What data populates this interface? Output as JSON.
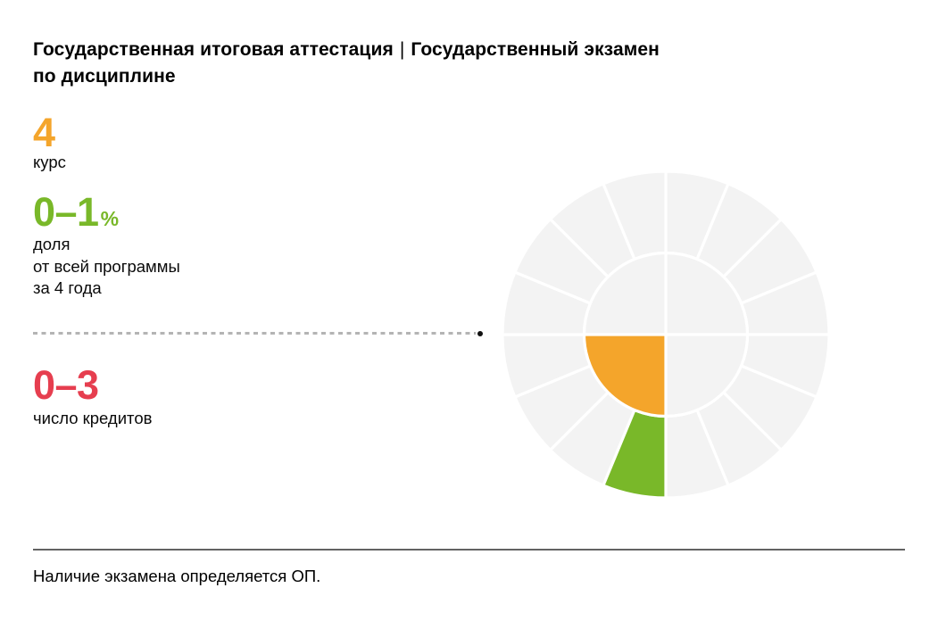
{
  "header": {
    "title_line1_part1": "Государственная итоговая аттестация",
    "title_separator": "|",
    "title_line1_part2": "Государственный экзамен",
    "title_line2": "по дисциплине"
  },
  "stats": [
    {
      "id": "course",
      "value": "4",
      "suffix": "",
      "color": "#f4a52b",
      "label_lines": [
        "курс"
      ]
    },
    {
      "id": "share",
      "value": "0–1",
      "suffix": "%",
      "color": "#79b829",
      "label_lines": [
        "доля",
        "от всей программы",
        "за 4 года"
      ]
    },
    {
      "id": "credits",
      "value": "0–3",
      "suffix": "",
      "color": "#e63e4f",
      "label_lines": [
        "число кредитов"
      ]
    }
  ],
  "footer": {
    "note": "Наличие экзамена определяется ОП."
  },
  "chart_data": {
    "type": "radial-module-wheel",
    "description": "Колесо учебного плана: внутренний круг разделён на 4 квадранта (курсы, по часовой стрелке, 1-й курс начинается на 9 часах), внешнее кольцо — 16 сегментов (модули, по 4 на курс). Выделены 4-й курс (оранжевый квадрант) и 1-й модуль 4-го курса (зелёный сегмент).",
    "years": 4,
    "modules_per_year": 4,
    "start_angle_deg": 0,
    "outer_radius": 183,
    "inner_radius": 91.5,
    "base_color": "#f3f3f3",
    "gap_color": "#ffffff",
    "highlighted_year": {
      "index": 4,
      "quadrant": "bottom-left",
      "angle_range_deg": [
        180,
        270
      ],
      "color": "#f4a52b"
    },
    "highlighted_modules": [
      {
        "year": 4,
        "module": 1,
        "angle_range_deg": [
          180,
          202.5
        ],
        "color": "#79b829"
      }
    ]
  }
}
